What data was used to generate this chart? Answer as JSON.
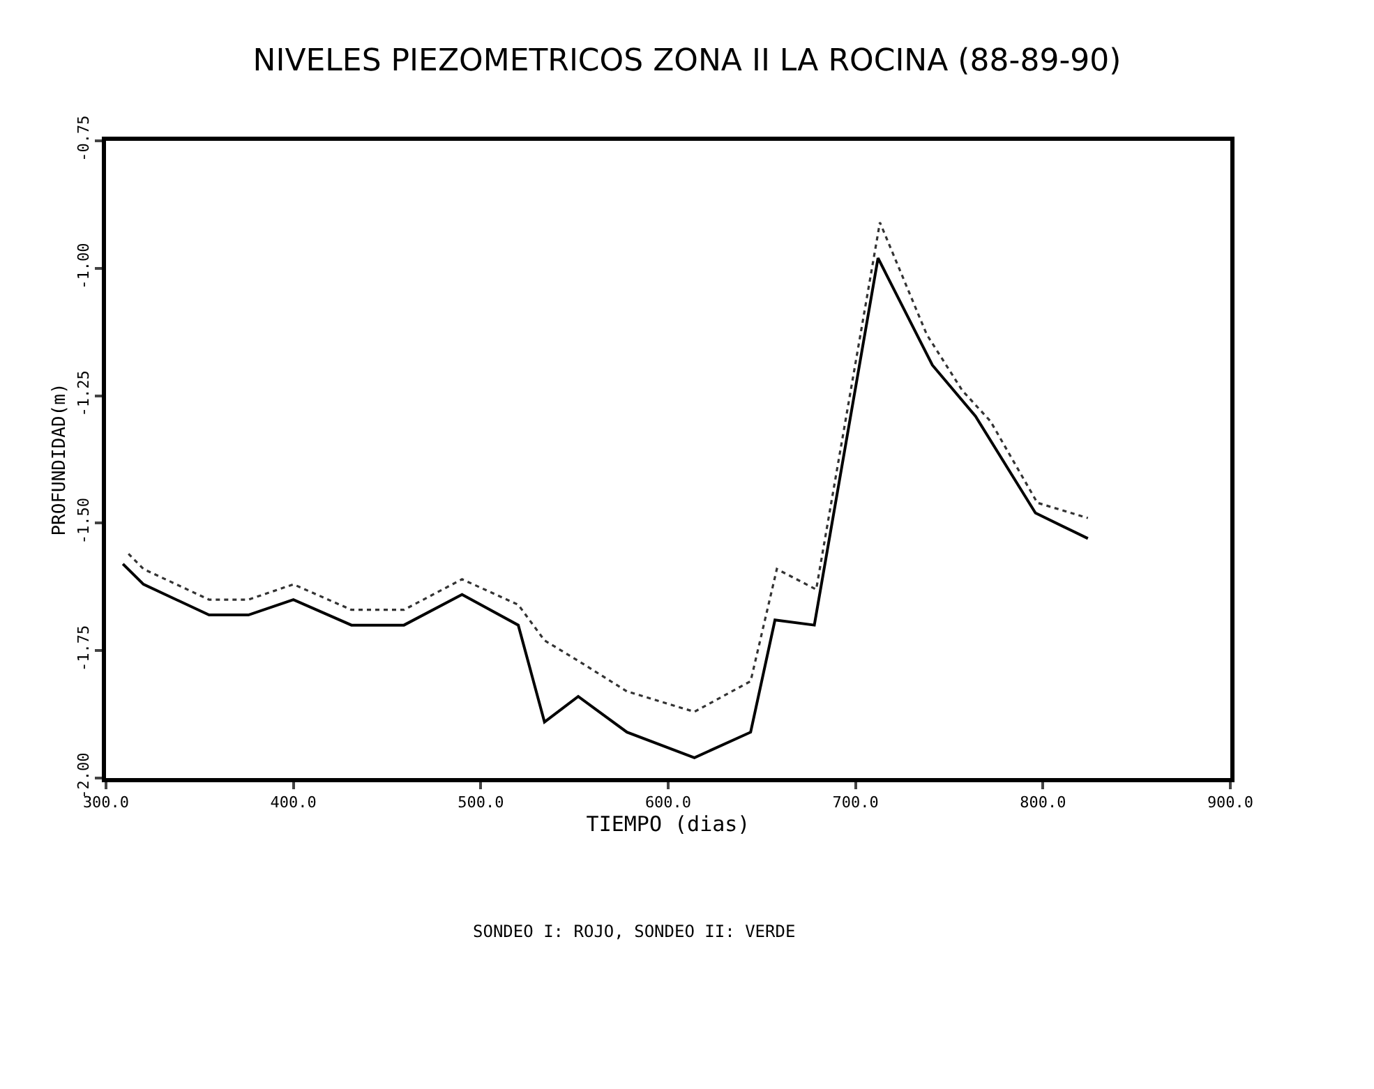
{
  "chart_data": {
    "type": "line",
    "title": "NIVELES PIEZOMETRICOS ZONA II LA ROCINA (88-89-90)",
    "xlabel": "TIEMPO (dias)",
    "ylabel": "PROFUNDIDAD(m)",
    "annotations": [
      "SONDEO I: ROJO, SONDEO II: VERDE"
    ],
    "series": [
      {
        "color": "#000000",
        "line_style": "solid",
        "x": [
          309,
          320,
          355,
          376,
          400,
          431,
          459,
          490,
          520,
          534,
          552,
          578,
          614,
          644,
          657,
          678,
          712,
          741,
          764,
          796,
          824
        ],
        "values": [
          -1.58,
          -1.62,
          -1.68,
          -1.68,
          -1.65,
          -1.7,
          -1.7,
          -1.64,
          -1.7,
          -1.89,
          -1.84,
          -1.91,
          -1.96,
          -1.91,
          -1.69,
          -1.7,
          -0.98,
          -1.19,
          -1.29,
          -1.48,
          -1.53
        ]
      },
      {
        "color": "#333333",
        "line_style": "dotted",
        "x": [
          312,
          320,
          355,
          376,
          400,
          431,
          459,
          490,
          520,
          534,
          552,
          578,
          614,
          644,
          658,
          679,
          713,
          738,
          757,
          772,
          797,
          824
        ],
        "values": [
          -1.56,
          -1.59,
          -1.65,
          -1.65,
          -1.62,
          -1.67,
          -1.67,
          -1.61,
          -1.66,
          -1.73,
          -1.77,
          -1.83,
          -1.87,
          -1.81,
          -1.59,
          -1.63,
          -0.91,
          -1.13,
          -1.24,
          -1.3,
          -1.46,
          -1.49
        ]
      }
    ],
    "xlim": [
      300,
      900
    ],
    "xticks": [
      {
        "value": 300,
        "label": "300.0"
      },
      {
        "value": 400,
        "label": "400.0"
      },
      {
        "value": 500,
        "label": "500.0"
      },
      {
        "value": 600,
        "label": "600.0"
      },
      {
        "value": 700,
        "label": "700.0"
      },
      {
        "value": 800,
        "label": "800.0"
      },
      {
        "value": 900,
        "label": "900.0"
      }
    ],
    "ylim": [
      -2.0,
      -0.75
    ],
    "yticks": [
      {
        "value": -2.0,
        "label": "-2.00"
      },
      {
        "value": -1.75,
        "label": "-1.75"
      },
      {
        "value": -1.5,
        "label": "-1.50"
      },
      {
        "value": -1.25,
        "label": "-1.25"
      },
      {
        "value": -1.0,
        "label": "-1.00"
      },
      {
        "value": -0.75,
        "label": "-0.75"
      }
    ],
    "marker": "none"
  }
}
